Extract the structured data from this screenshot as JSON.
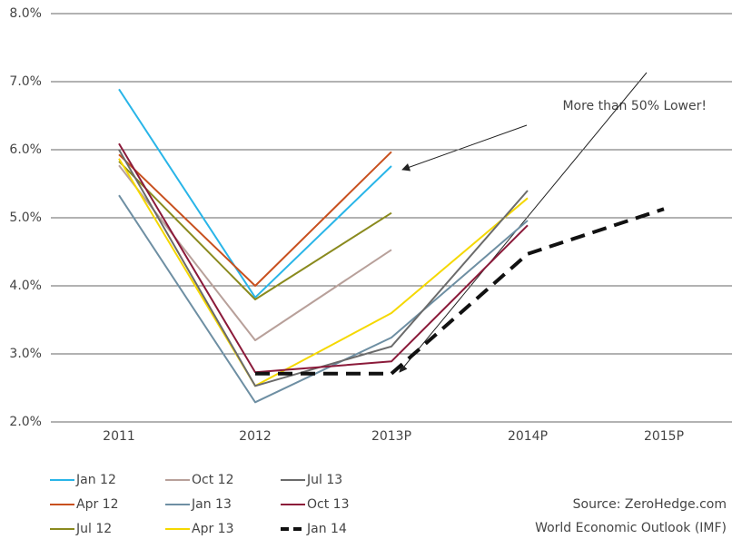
{
  "chart_data": {
    "type": "line",
    "categories": [
      "2011",
      "2012",
      "2013P",
      "2014P",
      "2015P"
    ],
    "ylim": [
      2,
      8
    ],
    "yticks": [
      {
        "value": 2,
        "label": "2.0%"
      },
      {
        "value": 3,
        "label": "3.0%"
      },
      {
        "value": 4,
        "label": "4.0%"
      },
      {
        "value": 5,
        "label": "5.0%"
      },
      {
        "value": 6,
        "label": "6.0%"
      },
      {
        "value": 7,
        "label": "7.0%"
      },
      {
        "value": 8,
        "label": "8.0%"
      }
    ],
    "grid": true,
    "series": [
      {
        "name": "Jan 12",
        "color": "#29b5e8",
        "values": [
          6.89,
          3.83,
          5.76,
          null,
          null
        ]
      },
      {
        "name": "Apr 12",
        "color": "#c8501e",
        "values": [
          5.93,
          4.0,
          5.97,
          null,
          null
        ]
      },
      {
        "name": "Jul 12",
        "color": "#8a8a1e",
        "values": [
          5.83,
          3.8,
          5.07,
          null,
          null
        ]
      },
      {
        "name": "Oct 12",
        "color": "#b8a09a",
        "values": [
          5.77,
          3.2,
          4.53,
          null,
          null
        ]
      },
      {
        "name": "Jan 13",
        "color": "#6e8fa3",
        "values": [
          5.33,
          2.29,
          3.24,
          4.96,
          null
        ]
      },
      {
        "name": "Apr 13",
        "color": "#f5d800",
        "values": [
          5.87,
          2.53,
          3.6,
          5.29,
          null
        ]
      },
      {
        "name": "Jul 13",
        "color": "#6b6b6b",
        "values": [
          6.0,
          2.53,
          3.11,
          5.4,
          null
        ]
      },
      {
        "name": "Oct 13",
        "color": "#8b1a3a",
        "values": [
          6.09,
          2.73,
          2.89,
          4.89,
          null
        ]
      },
      {
        "name": "Jan 14",
        "color": "#111111",
        "dashed": true,
        "values": [
          null,
          2.71,
          2.71,
          4.47,
          5.13
        ]
      }
    ],
    "annotations": [
      "More than 50%  Lower!"
    ],
    "source": [
      "Source: ZeroHedge.com",
      "World Economic Outlook (IMF)"
    ]
  }
}
